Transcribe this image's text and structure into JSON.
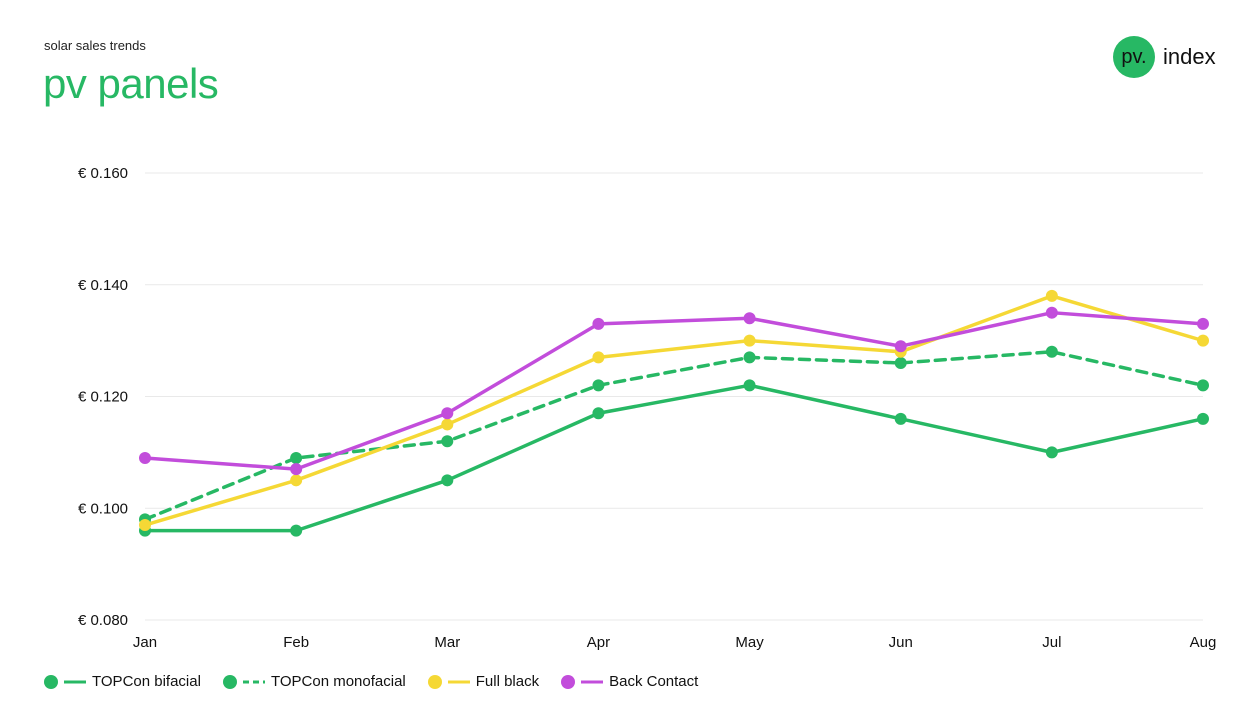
{
  "header": {
    "subtitle": "solar sales trends",
    "title": "pv panels"
  },
  "logo": {
    "mark": "pv.",
    "word": "index",
    "color": "#27b864"
  },
  "chart_data": {
    "type": "line",
    "title": "pv panels",
    "subtitle": "solar sales trends",
    "xlabel": "",
    "ylabel": "",
    "categories": [
      "Jan",
      "Feb",
      "Mar",
      "Apr",
      "May",
      "Jun",
      "Jul",
      "Aug"
    ],
    "ylim": [
      0.08,
      0.16
    ],
    "yticks": [
      0.08,
      0.1,
      0.12,
      0.14,
      0.16
    ],
    "ytick_labels": [
      "€ 0.080",
      "€ 0.100",
      "€ 0.120",
      "€ 0.140",
      "€ 0.160"
    ],
    "grid": true,
    "legend_position": "bottom-left",
    "series": [
      {
        "name": "TOPCon bifacial",
        "color": "#27b864",
        "dashed": false,
        "values": [
          0.096,
          0.096,
          0.105,
          0.117,
          0.122,
          0.116,
          0.11,
          0.116
        ]
      },
      {
        "name": "TOPCon monofacial",
        "color": "#27b864",
        "dashed": true,
        "values": [
          0.098,
          0.109,
          0.112,
          0.122,
          0.127,
          0.126,
          0.128,
          0.122
        ]
      },
      {
        "name": "Full black",
        "color": "#f5d835",
        "dashed": false,
        "values": [
          0.097,
          0.105,
          0.115,
          0.127,
          0.13,
          0.128,
          0.138,
          0.13
        ]
      },
      {
        "name": "Back Contact",
        "color": "#c24ddb",
        "dashed": false,
        "values": [
          0.109,
          0.107,
          0.117,
          0.133,
          0.134,
          0.129,
          0.135,
          0.133
        ]
      }
    ]
  }
}
